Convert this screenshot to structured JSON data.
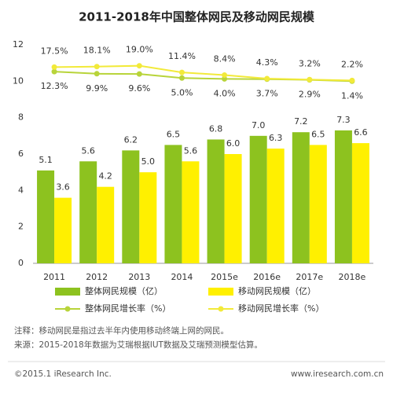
{
  "chart_data": {
    "type": "bar",
    "title": "2011-2018年中国整体网民及移动网民规模",
    "categories": [
      "2011",
      "2012",
      "2013",
      "2014",
      "2015e",
      "2016e",
      "2017e",
      "2018e"
    ],
    "ylim": [
      0,
      12
    ],
    "yticks": [
      0,
      2,
      4,
      6,
      8,
      10,
      12
    ],
    "y2lim": [
      -207,
      43
    ],
    "grid": false,
    "series": [
      {
        "name": "整体网民规模（亿）",
        "color": "#8dc21f",
        "values": [
          5.1,
          5.6,
          6.2,
          6.5,
          6.8,
          7.0,
          7.2,
          7.3
        ],
        "value_labels": [
          "5.1",
          "5.6",
          "6.2",
          "6.5",
          "6.8",
          "7.0",
          "7.2",
          "7.3"
        ]
      },
      {
        "name": "移动网民规模（亿）",
        "color": "#fff000",
        "values": [
          3.6,
          4.2,
          5.0,
          5.6,
          6.0,
          6.3,
          6.5,
          6.6
        ],
        "value_labels": [
          "3.6",
          "4.2",
          "5.0",
          "5.6",
          "6.0",
          "6.3",
          "6.5",
          "6.6"
        ]
      },
      {
        "name": "整体网民增长率（%）",
        "type": "line",
        "axis": "y2",
        "color": "#b8d43a",
        "values": [
          12.3,
          9.9,
          9.6,
          5.0,
          4.0,
          3.7,
          2.9,
          1.4
        ],
        "value_labels": [
          "12.3%",
          "9.9%",
          "9.6%",
          "5.0%",
          "4.0%",
          "3.7%",
          "2.9%",
          "1.4%"
        ]
      },
      {
        "name": "移动网民增长率（%）",
        "type": "line",
        "axis": "y2",
        "color": "#f2ea3a",
        "values": [
          17.5,
          18.1,
          19.0,
          11.4,
          8.4,
          4.3,
          3.2,
          2.2
        ],
        "value_labels": [
          "17.5%",
          "18.1%",
          "19.0%",
          "11.4%",
          "8.4%",
          "4.3%",
          "3.2%",
          "2.2%"
        ]
      }
    ]
  },
  "notes": [
    "注释：移动网民是指过去半年内使用移动终端上网的网民。",
    "来源：2015-2018年数据为艾瑞根据IUT数据及艾瑞预测模型估算。"
  ],
  "footer": {
    "left": "©2015.1 iResearch Inc.",
    "right": "www.iresearch.com.cn"
  }
}
